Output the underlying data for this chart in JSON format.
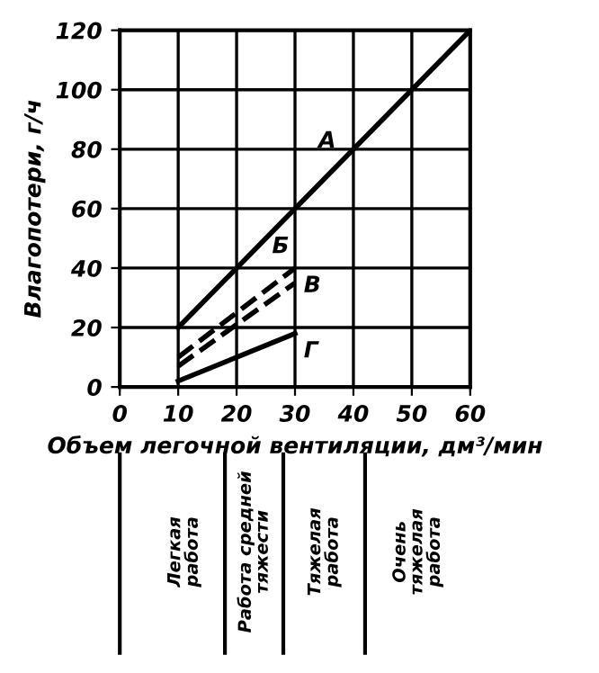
{
  "chart_data": {
    "type": "line",
    "xlabel": "Объем легочной вентиляции, дм³/мин",
    "ylabel": "Влагопотери, г/ч",
    "xlim": [
      0,
      60
    ],
    "ylim": [
      0,
      120
    ],
    "xticks": [
      0,
      10,
      20,
      30,
      40,
      50,
      60
    ],
    "yticks": [
      0,
      20,
      40,
      60,
      80,
      100,
      120
    ],
    "grid": true,
    "series": [
      {
        "name": "А",
        "color": "#000000",
        "x": [
          10,
          60
        ],
        "values": [
          20,
          120
        ],
        "line_style": "solid"
      },
      {
        "name": "Б",
        "color": "#000000",
        "x": [
          10,
          30
        ],
        "values": [
          10,
          40
        ],
        "line_style": "dashed"
      },
      {
        "name": "В",
        "color": "#000000",
        "x": [
          10,
          30
        ],
        "values": [
          7,
          35
        ],
        "line_style": "dashed"
      },
      {
        "name": "Г",
        "color": "#000000",
        "x": [
          10,
          30
        ],
        "values": [
          2,
          18
        ],
        "line_style": "solid"
      }
    ],
    "annotations": [
      "Легкая работа",
      "Работа средней тяжести",
      "Тяжелая работа",
      "Очень тяжелая работа"
    ]
  }
}
